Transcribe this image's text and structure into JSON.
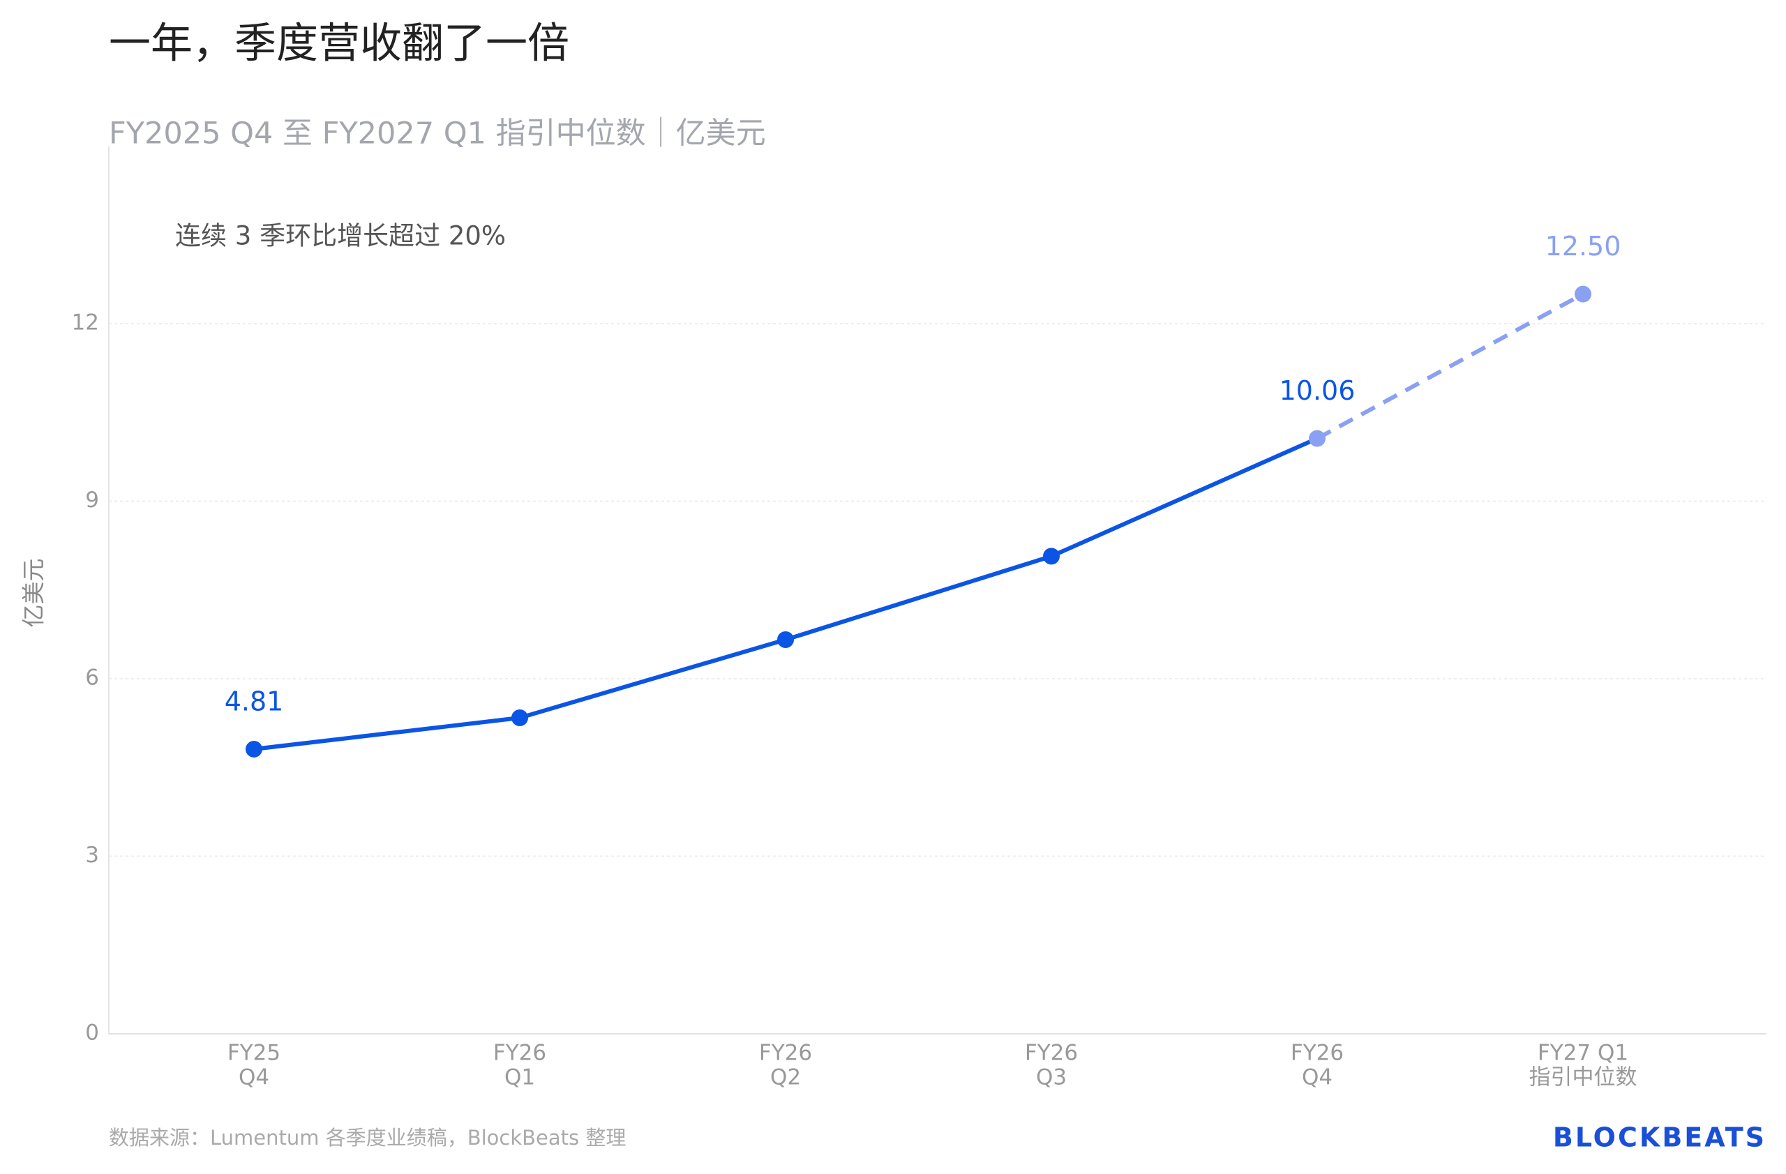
{
  "chart_data": {
    "type": "line",
    "title": "一年，季度营收翻了一倍",
    "subtitle": "FY2025 Q4 至 FY2027 Q1 指引中位数｜亿美元",
    "annotation": "连续 3 季环比增长超过 20%",
    "y_label": "亿美元",
    "categories": [
      [
        "FY25",
        "Q4"
      ],
      [
        "FY26",
        "Q1"
      ],
      [
        "FY26",
        "Q2"
      ],
      [
        "FY26",
        "Q3"
      ],
      [
        "FY26",
        "Q4"
      ],
      [
        "FY27 Q1",
        "指引中位数"
      ]
    ],
    "values": [
      4.81,
      5.34,
      6.66,
      8.07,
      10.06,
      12.5
    ],
    "value_labels": [
      "4.81",
      null,
      null,
      null,
      "10.06",
      "12.50"
    ],
    "color": "#0a55e6",
    "projection_color": "#8aa0f2",
    "dashed_from": 4,
    "ylim": [
      0,
      15
    ],
    "yticks": [
      0,
      3,
      6,
      9,
      12
    ],
    "grid": true,
    "source": "数据来源：Lumentum 各季度业绩稿，BlockBeats 整理",
    "logo": "BLOCKBEATS"
  }
}
